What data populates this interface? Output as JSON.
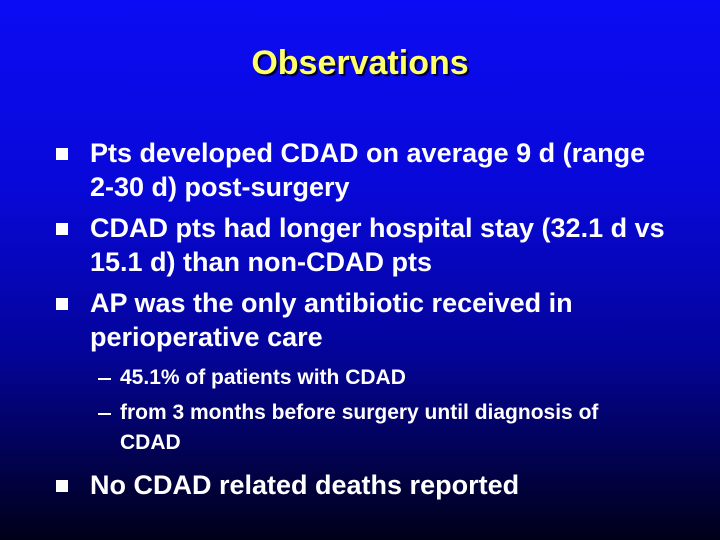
{
  "header": {
    "title": "Observations"
  },
  "bullets": [
    "Pts developed CDAD on average 9 d (range 2-30 d) post-surgery",
    "CDAD pts had longer hospital stay (32.1 d vs 15.1 d) than non-CDAD pts",
    "AP was the only antibiotic received in perioperative care"
  ],
  "sub_bullets": [
    "45.1% of patients with CDAD",
    "from 3 months before surgery until diagnosis of CDAD"
  ],
  "final_bullet": "No CDAD related deaths reported"
}
